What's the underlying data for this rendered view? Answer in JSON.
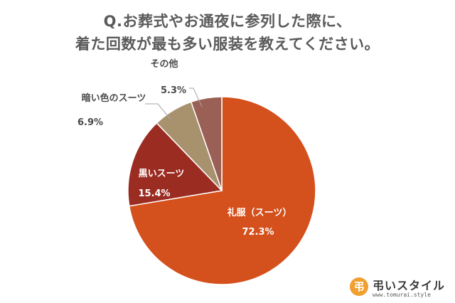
{
  "chart_data": {
    "type": "pie",
    "title": [
      "Q.お葬式やお通夜に参列した際に、",
      "着た回数が最も多い服装を教えてください。"
    ],
    "categories": [
      "礼服（スーツ）",
      "黒いスーツ",
      "暗い色のスーツ",
      "その他"
    ],
    "values": [
      72.3,
      15.4,
      6.9,
      5.3
    ],
    "value_labels": [
      "72.3%",
      "15.4%",
      "6.9%",
      "5.3%"
    ],
    "colors": [
      "#d4501c",
      "#9b2c22",
      "#a8926e",
      "#9a5f55"
    ],
    "start": "12 o'clock",
    "direction": "clockwise"
  },
  "logo": {
    "mark": "弔",
    "name": "弔いスタイル",
    "url": "www.tomurai.style"
  }
}
